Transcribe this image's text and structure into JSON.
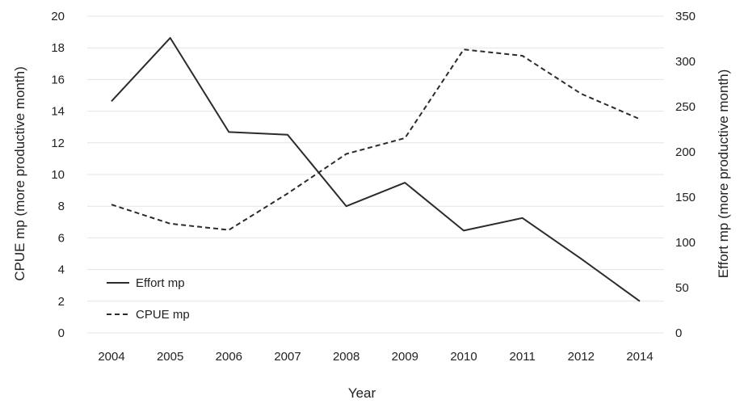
{
  "chart_data": {
    "type": "line",
    "categories": [
      "2004",
      "2005",
      "2006",
      "2007",
      "2008",
      "2009",
      "2010",
      "2011",
      "2012",
      "2014"
    ],
    "series": [
      {
        "name": "Effort mp",
        "axis": "right",
        "line_style": "solid",
        "color": "#2b2b2b",
        "values": [
          256,
          326,
          222,
          219,
          140,
          166,
          113,
          127,
          82,
          35
        ]
      },
      {
        "name": "CPUE mp",
        "axis": "left",
        "line_style": "dashed",
        "color": "#2b2b2b",
        "values": [
          8.1,
          6.9,
          6.5,
          8.8,
          11.3,
          12.3,
          17.9,
          17.5,
          15.1,
          13.5
        ]
      }
    ],
    "xlabel": "Year",
    "ylabel_left": "CPUE mp (more productive month)",
    "ylabel_right": "Effort mp (more productive month)",
    "ylim_left": [
      0,
      20
    ],
    "ylim_right": [
      0,
      350
    ],
    "yticks_left": [
      "0",
      "2",
      "4",
      "6",
      "8",
      "10",
      "12",
      "14",
      "16",
      "18",
      "20"
    ],
    "yticks_right": [
      "0",
      "50",
      "100",
      "150",
      "200",
      "250",
      "300",
      "350"
    ],
    "grid": true,
    "legend": {
      "position": "bottom-left",
      "entries": [
        "Effort mp",
        "CPUE mp"
      ]
    }
  }
}
